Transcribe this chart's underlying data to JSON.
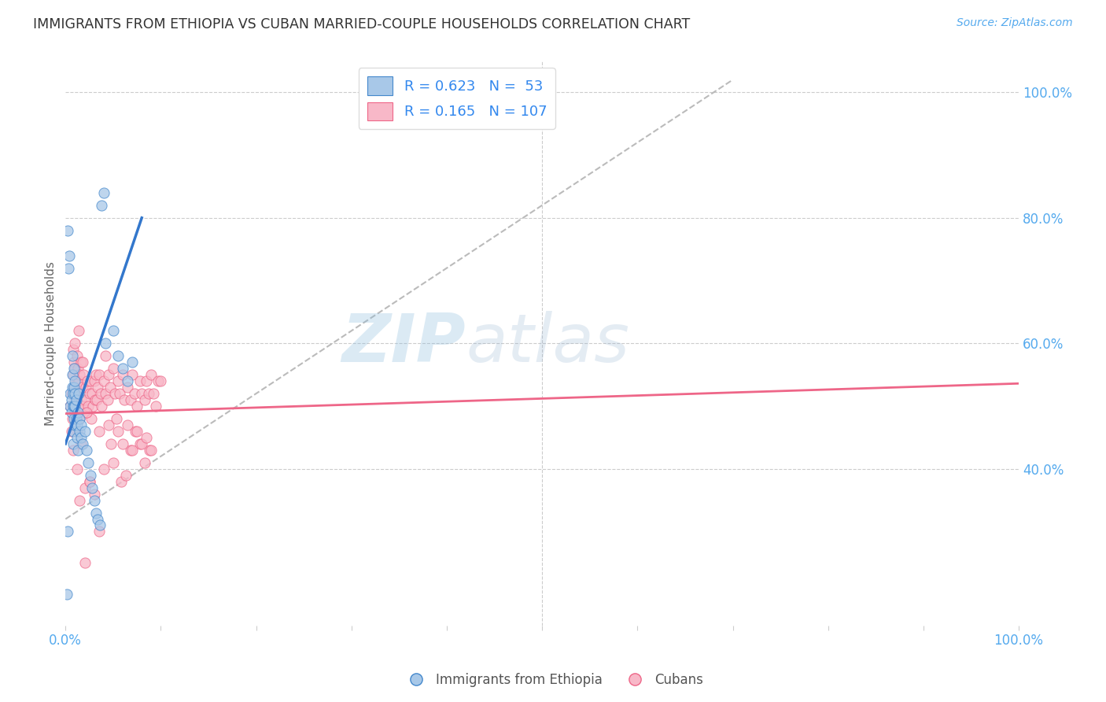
{
  "title": "IMMIGRANTS FROM ETHIOPIA VS CUBAN MARRIED-COUPLE HOUSEHOLDS CORRELATION CHART",
  "source": "Source: ZipAtlas.com",
  "ylabel": "Married-couple Households",
  "xlim": [
    0.0,
    1.0
  ],
  "ylim": [
    0.15,
    1.05
  ],
  "blue_color": "#a8c8e8",
  "pink_color": "#f8b8c8",
  "blue_edge_color": "#4488cc",
  "pink_edge_color": "#ee6688",
  "blue_line_color": "#3377cc",
  "pink_line_color": "#ee6688",
  "ref_line_color": "#bbbbbb",
  "watermark_color": "#c8ddf0",
  "background_color": "#ffffff",
  "grid_color": "#cccccc",
  "title_color": "#333333",
  "axis_tick_color": "#55aaee",
  "ylabel_color": "#666666",
  "legend_text_color": "#333333",
  "legend_r_n_color": "#3388ee",
  "blue_r": 0.623,
  "blue_n": 53,
  "pink_r": 0.165,
  "pink_n": 107,
  "scatter_size": 90,
  "scatter_alpha": 0.75,
  "blue_scatter_x": [
    0.002,
    0.003,
    0.004,
    0.005,
    0.005,
    0.006,
    0.006,
    0.007,
    0.007,
    0.007,
    0.008,
    0.008,
    0.008,
    0.008,
    0.009,
    0.009,
    0.009,
    0.009,
    0.01,
    0.01,
    0.01,
    0.01,
    0.011,
    0.011,
    0.012,
    0.012,
    0.013,
    0.013,
    0.014,
    0.015,
    0.015,
    0.016,
    0.016,
    0.018,
    0.02,
    0.022,
    0.024,
    0.026,
    0.028,
    0.03,
    0.032,
    0.034,
    0.036,
    0.038,
    0.04,
    0.042,
    0.05,
    0.055,
    0.06,
    0.065,
    0.07,
    0.001,
    0.002
  ],
  "blue_scatter_y": [
    0.78,
    0.72,
    0.74,
    0.5,
    0.52,
    0.49,
    0.51,
    0.53,
    0.55,
    0.58,
    0.5,
    0.52,
    0.44,
    0.46,
    0.48,
    0.5,
    0.53,
    0.56,
    0.47,
    0.5,
    0.52,
    0.54,
    0.48,
    0.51,
    0.45,
    0.47,
    0.43,
    0.49,
    0.52,
    0.46,
    0.48,
    0.45,
    0.47,
    0.44,
    0.46,
    0.43,
    0.41,
    0.39,
    0.37,
    0.35,
    0.33,
    0.32,
    0.31,
    0.82,
    0.84,
    0.6,
    0.62,
    0.58,
    0.56,
    0.54,
    0.57,
    0.2,
    0.3
  ],
  "pink_scatter_x": [
    0.005,
    0.006,
    0.007,
    0.008,
    0.008,
    0.009,
    0.009,
    0.01,
    0.01,
    0.01,
    0.011,
    0.011,
    0.012,
    0.012,
    0.013,
    0.013,
    0.014,
    0.014,
    0.015,
    0.015,
    0.016,
    0.016,
    0.017,
    0.018,
    0.019,
    0.02,
    0.021,
    0.022,
    0.023,
    0.024,
    0.025,
    0.026,
    0.027,
    0.028,
    0.029,
    0.03,
    0.031,
    0.032,
    0.033,
    0.034,
    0.035,
    0.037,
    0.038,
    0.04,
    0.042,
    0.044,
    0.045,
    0.047,
    0.05,
    0.052,
    0.055,
    0.057,
    0.06,
    0.062,
    0.065,
    0.068,
    0.07,
    0.072,
    0.075,
    0.078,
    0.08,
    0.083,
    0.085,
    0.087,
    0.09,
    0.092,
    0.095,
    0.097,
    0.1,
    0.008,
    0.012,
    0.016,
    0.02,
    0.01,
    0.014,
    0.006,
    0.025,
    0.03,
    0.018,
    0.022,
    0.035,
    0.04,
    0.045,
    0.048,
    0.053,
    0.058,
    0.063,
    0.068,
    0.073,
    0.078,
    0.083,
    0.088,
    0.015,
    0.035,
    0.05,
    0.06,
    0.07,
    0.08,
    0.09,
    0.02,
    0.025,
    0.042,
    0.055,
    0.065,
    0.075,
    0.085
  ],
  "pink_scatter_y": [
    0.5,
    0.52,
    0.48,
    0.59,
    0.55,
    0.53,
    0.57,
    0.5,
    0.56,
    0.52,
    0.48,
    0.54,
    0.46,
    0.58,
    0.52,
    0.56,
    0.5,
    0.54,
    0.48,
    0.55,
    0.51,
    0.57,
    0.53,
    0.5,
    0.55,
    0.51,
    0.53,
    0.49,
    0.54,
    0.5,
    0.52,
    0.54,
    0.48,
    0.52,
    0.5,
    0.54,
    0.51,
    0.55,
    0.51,
    0.53,
    0.55,
    0.52,
    0.5,
    0.54,
    0.52,
    0.51,
    0.55,
    0.53,
    0.56,
    0.52,
    0.54,
    0.52,
    0.55,
    0.51,
    0.53,
    0.51,
    0.55,
    0.52,
    0.5,
    0.54,
    0.52,
    0.51,
    0.54,
    0.52,
    0.55,
    0.52,
    0.5,
    0.54,
    0.54,
    0.43,
    0.4,
    0.44,
    0.37,
    0.6,
    0.62,
    0.46,
    0.38,
    0.36,
    0.57,
    0.49,
    0.46,
    0.4,
    0.47,
    0.44,
    0.48,
    0.38,
    0.39,
    0.43,
    0.46,
    0.44,
    0.41,
    0.43,
    0.35,
    0.3,
    0.41,
    0.44,
    0.43,
    0.44,
    0.43,
    0.25,
    0.38,
    0.58,
    0.46,
    0.47,
    0.46,
    0.45
  ],
  "blue_line_x": [
    0.0,
    0.08
  ],
  "blue_line_y": [
    0.44,
    0.8
  ],
  "pink_line_x": [
    0.0,
    1.0
  ],
  "pink_line_y": [
    0.488,
    0.536
  ],
  "ref_line_x": [
    0.0,
    0.7
  ],
  "ref_line_y": [
    0.32,
    1.02
  ]
}
